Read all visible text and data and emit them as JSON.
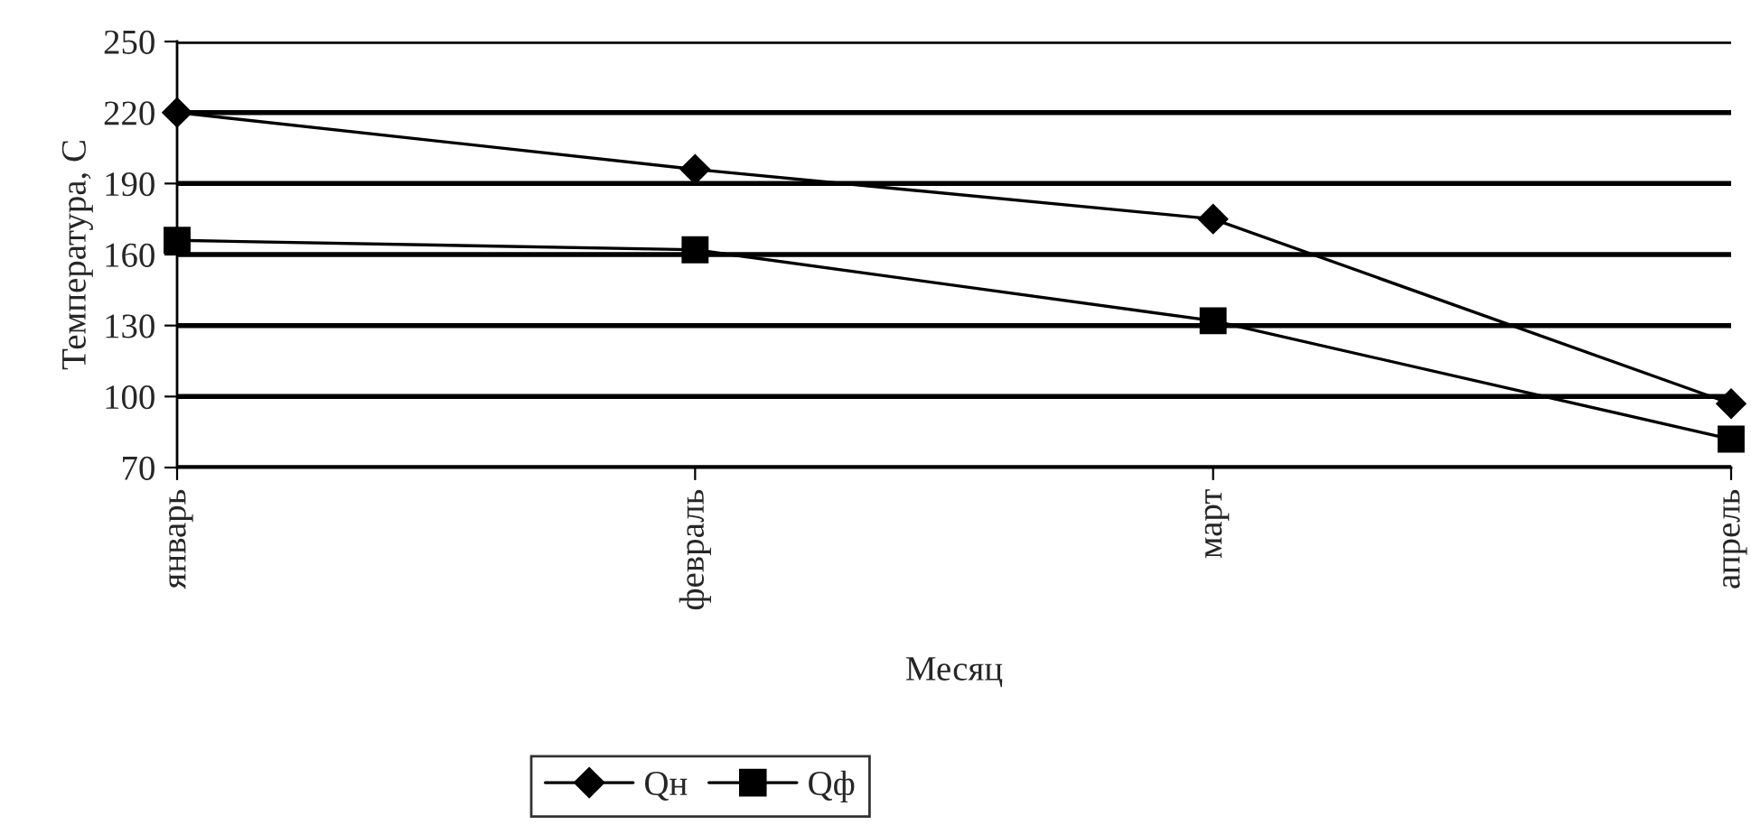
{
  "chart_data": {
    "type": "line",
    "xlabel": "Месяц",
    "ylabel": "Температура, С",
    "categories": [
      "январь",
      "февраль",
      "март",
      "апрель"
    ],
    "series": [
      {
        "name": "Qн",
        "color": "#000000",
        "values": [
          220,
          196,
          175,
          97
        ],
        "marker": "diamond"
      },
      {
        "name": "Qф",
        "color": "#000000",
        "values": [
          166,
          162,
          132,
          82
        ],
        "marker": "square"
      }
    ],
    "ylim": [
      70,
      250
    ],
    "yticks": [
      70,
      100,
      130,
      160,
      190,
      220,
      250
    ],
    "grid": "y",
    "legend": "bottom",
    "line_style": "solid"
  }
}
